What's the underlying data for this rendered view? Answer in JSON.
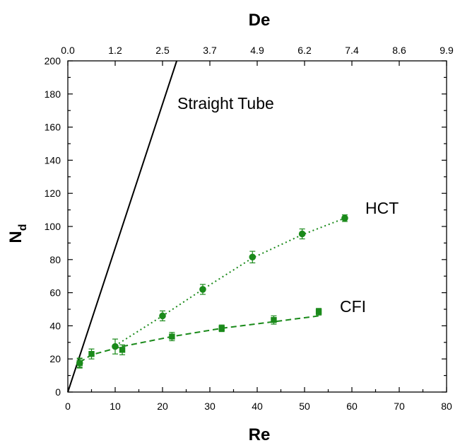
{
  "chart_data": {
    "type": "scatter",
    "title": "",
    "xlabel": "Re",
    "ylabel": "N",
    "ylabel_sub": "d",
    "x2label": "De",
    "xlim": [
      0,
      80
    ],
    "ylim": [
      0,
      200
    ],
    "grid": false,
    "legend": "none",
    "x_ticks": [
      0,
      10,
      20,
      30,
      40,
      50,
      60,
      70,
      80
    ],
    "x_tick_labels": [
      "0",
      "10",
      "20",
      "30",
      "40",
      "50",
      "60",
      "70",
      "80"
    ],
    "y_ticks": [
      0,
      20,
      40,
      60,
      80,
      100,
      120,
      140,
      160,
      180,
      200
    ],
    "y_tick_labels": [
      "0",
      "20",
      "40",
      "60",
      "80",
      "100",
      "120",
      "140",
      "160",
      "180",
      "200"
    ],
    "x2_ticks": [
      0,
      10,
      20,
      30,
      40,
      50,
      60,
      70,
      80
    ],
    "x2_tick_labels": [
      "0.0",
      "1.2",
      "2.5",
      "3.7",
      "4.9",
      "6.2",
      "7.4",
      "8.6",
      "9.9"
    ],
    "series": [
      {
        "id": "straight",
        "style": "solid-line",
        "color": "#000000",
        "x": [
          0,
          23
        ],
        "y": [
          0,
          200
        ]
      },
      {
        "id": "hct",
        "style": "circle-dotted",
        "color": "#1a8a1a",
        "x": [
          2.5,
          10,
          20,
          28.5,
          39,
          49.5,
          58.5
        ],
        "y": [
          17.5,
          27.5,
          46,
          62,
          81.5,
          95.5,
          105
        ],
        "err": [
          3,
          4.5,
          3,
          3,
          3.5,
          3,
          2
        ]
      },
      {
        "id": "cfi",
        "style": "square-dashed",
        "color": "#1a8a1a",
        "x": [
          2.5,
          5,
          11.5,
          22,
          32.5,
          43.5,
          53
        ],
        "y": [
          17.5,
          23,
          25.5,
          33.5,
          38.5,
          43.5,
          48.5
        ],
        "err": [
          2.5,
          3,
          3,
          2.5,
          2,
          2.5,
          2
        ]
      }
    ],
    "trend_curves": [
      {
        "series": "hct",
        "x": [
          10,
          20,
          28.5,
          39,
          49.5,
          58.5
        ],
        "y": [
          28,
          46,
          62,
          81,
          95,
          105
        ]
      },
      {
        "series": "cfi",
        "x": [
          2.5,
          5,
          11.5,
          22,
          32.5,
          43.5,
          53
        ],
        "y": [
          18,
          22.5,
          27.5,
          33.5,
          38.5,
          42.5,
          46
        ]
      }
    ],
    "annotations": {
      "straight": "Straight Tube",
      "hct": "HCT",
      "cfi": "CFI"
    }
  }
}
